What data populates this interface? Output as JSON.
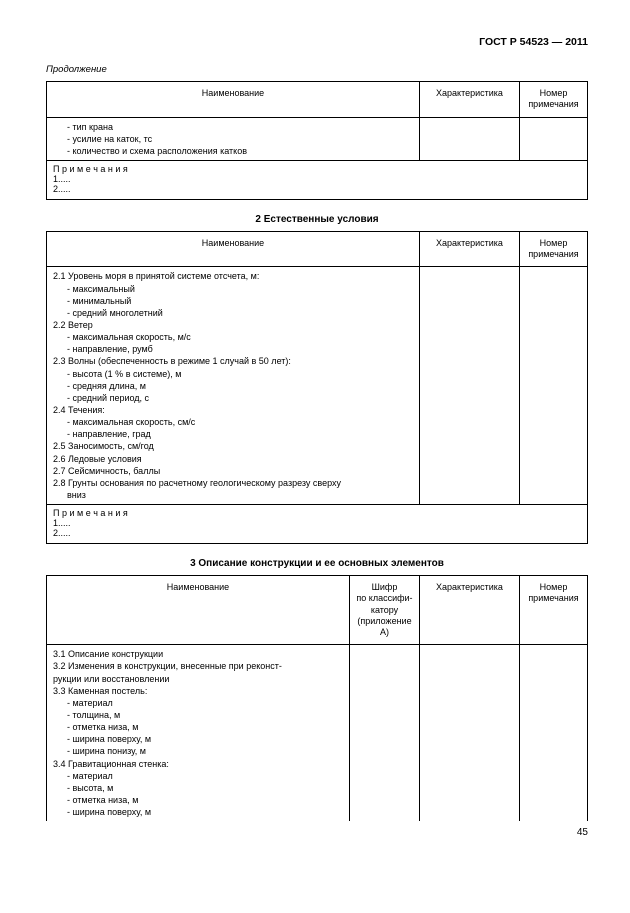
{
  "doc_id": "ГОСТ Р 54523 — 2011",
  "continuation": "Продолжение",
  "page_number": "45",
  "colors": {
    "text": "#000000",
    "bg": "#ffffff",
    "border": "#000000"
  },
  "fonts": {
    "body_size": 9.5,
    "th_size": 9,
    "title_size": 10
  },
  "headers": {
    "name": "Наименование",
    "char": "Характеристика",
    "note_num": "Номер примечания",
    "shifr_l1": "Шифр",
    "shifr_l2": "по классифи-",
    "shifr_l3": "катору",
    "shifr_l4": "(приложение А)"
  },
  "table1": {
    "rows": [
      "- тип крана",
      "- усилие на каток, тс",
      "- количество и схема расположения катков"
    ],
    "notes_label": "П р и м е ч а н и я",
    "notes_lines": [
      "1.....",
      "2....."
    ]
  },
  "section2_title": "2 Естественные условия",
  "table2": {
    "rows": [
      {
        "t": "2.1 Уровень моря в принятой системе отсчета, м:",
        "lvl": 0
      },
      {
        "t": "- максимальный",
        "lvl": 1
      },
      {
        "t": "- минимальный",
        "lvl": 1
      },
      {
        "t": "- средний многолетний",
        "lvl": 1
      },
      {
        "t": "2.2 Ветер",
        "lvl": 0
      },
      {
        "t": "- максимальная скорость, м/с",
        "lvl": 1
      },
      {
        "t": "- направление, румб",
        "lvl": 1
      },
      {
        "t": "2.3 Волны (обеспеченность в режиме 1 случай в 50 лет):",
        "lvl": 0
      },
      {
        "t": "- высота (1 % в системе), м",
        "lvl": 1
      },
      {
        "t": "- средняя длина, м",
        "lvl": 1
      },
      {
        "t": "- средний период, с",
        "lvl": 1
      },
      {
        "t": "2.4 Течения:",
        "lvl": 0
      },
      {
        "t": "- максимальная скорость, см/с",
        "lvl": 1
      },
      {
        "t": "- направление, град",
        "lvl": 1
      },
      {
        "t": "2.5 Заносимость, см/год",
        "lvl": 0
      },
      {
        "t": "2.6 Ледовые условия",
        "lvl": 0
      },
      {
        "t": "2.7 Сейсмичность, баллы",
        "lvl": 0
      },
      {
        "t": "2.8 Грунты основания по расчетному геологическому разрезу сверху",
        "lvl": 0
      },
      {
        "t": "вниз",
        "lvl": 1
      }
    ],
    "notes_label": "П р и м е ч а н и я",
    "notes_lines": [
      "1.....",
      "2....."
    ]
  },
  "section3_title": "3 Описание конструкции и ее основных элементов",
  "table3": {
    "rows": [
      {
        "t": "3.1 Описание конструкции",
        "lvl": 0
      },
      {
        "t": "3.2 Изменения в конструкции, внесенные при реконст-",
        "lvl": 0
      },
      {
        "t": "рукции или восстановлении",
        "lvl": 0,
        "noindent": true
      },
      {
        "t": "3.3 Каменная постель:",
        "lvl": 0
      },
      {
        "t": "- материал",
        "lvl": 1
      },
      {
        "t": "- толщина, м",
        "lvl": 1
      },
      {
        "t": "- отметка низа, м",
        "lvl": 1
      },
      {
        "t": "- ширина поверху, м",
        "lvl": 1
      },
      {
        "t": "- ширина понизу, м",
        "lvl": 1
      },
      {
        "t": "3.4 Гравитационная стенка:",
        "lvl": 0
      },
      {
        "t": "- материал",
        "lvl": 1
      },
      {
        "t": "- высота, м",
        "lvl": 1
      },
      {
        "t": "- отметка низа, м",
        "lvl": 1
      },
      {
        "t": "- ширина поверху, м",
        "lvl": 1
      }
    ]
  }
}
